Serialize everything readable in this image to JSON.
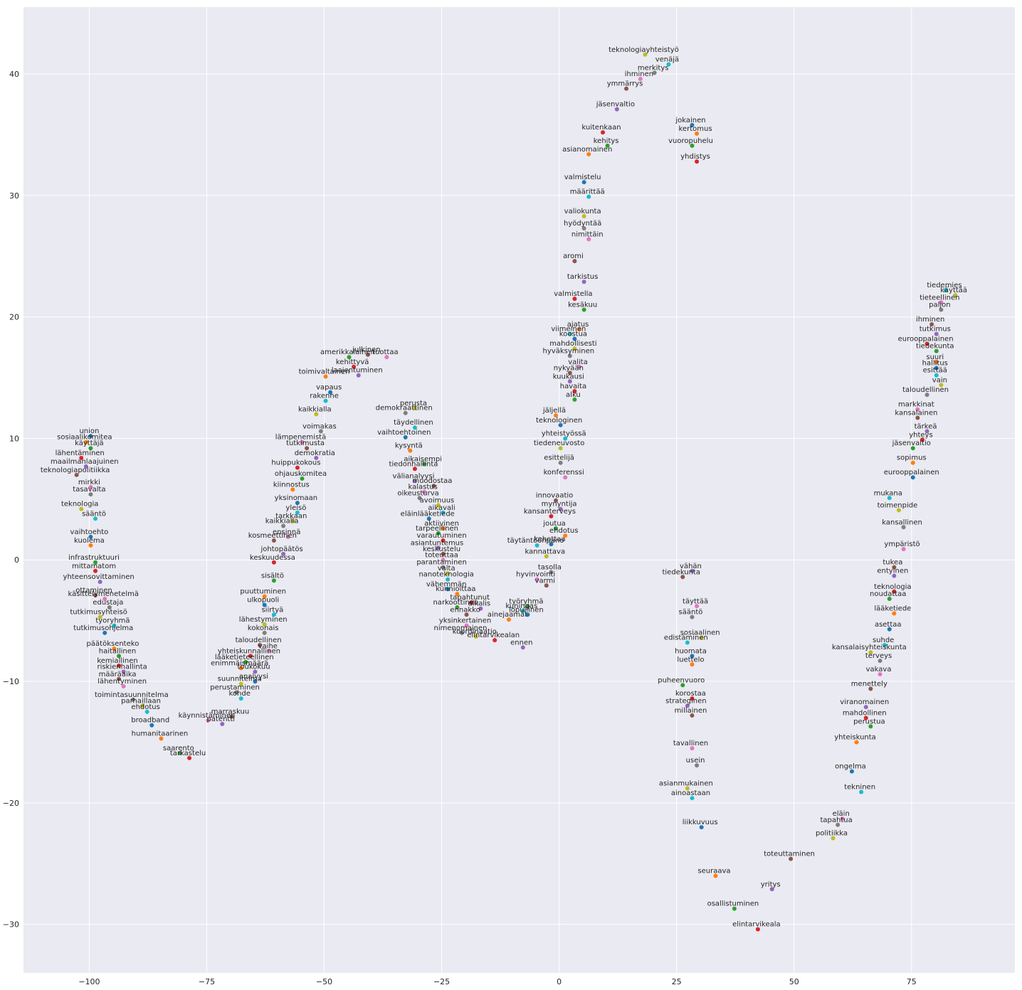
{
  "chart_data": {
    "type": "scatter",
    "title": "",
    "xlabel": "",
    "ylabel": "",
    "xlim": [
      -114,
      97
    ],
    "ylim": [
      -34,
      45.5
    ],
    "xticks": [
      -100,
      -75,
      -50,
      -25,
      0,
      25,
      50,
      75
    ],
    "yticks": [
      -30,
      -20,
      -10,
      0,
      10,
      20,
      30,
      40
    ],
    "grid": true,
    "legend": "none",
    "palette": [
      "#1f77b4",
      "#ff7f0e",
      "#2ca02c",
      "#d62728",
      "#9467bd",
      "#8c564b",
      "#e377c2",
      "#7f7f7f",
      "#bcbd22",
      "#17becf"
    ],
    "points": [
      {
        "label": "union",
        "x": -100,
        "y": 10.6
      },
      {
        "label": "sosiaalikomitea",
        "x": -101,
        "y": 10.1
      },
      {
        "label": "käyttäjä",
        "x": -100,
        "y": 9.6
      },
      {
        "label": "lähentäminen",
        "x": -102,
        "y": 8.8
      },
      {
        "label": "maailmanlaajuinen",
        "x": -101,
        "y": 8.1
      },
      {
        "label": "teknologiapolitiikka",
        "x": -103,
        "y": 7.4
      },
      {
        "label": "mirkki",
        "x": -100,
        "y": 6.4
      },
      {
        "label": "tasavalta",
        "x": -100,
        "y": 5.8
      },
      {
        "label": "teknologia",
        "x": -102,
        "y": 4.6
      },
      {
        "label": "sääntö",
        "x": -99,
        "y": 3.8
      },
      {
        "label": "vaihtoehto",
        "x": -100,
        "y": 2.3
      },
      {
        "label": "kuolema",
        "x": -100,
        "y": 1.6
      },
      {
        "label": "infrastruktuuri",
        "x": -99,
        "y": 0.2
      },
      {
        "label": "mittamatom",
        "x": -99,
        "y": -0.5
      },
      {
        "label": "yhteensovittaminen",
        "x": -98,
        "y": -1.4
      },
      {
        "label": "ottaminen",
        "x": -99,
        "y": -2.5
      },
      {
        "label": "käsittelymenetelmä",
        "x": -97,
        "y": -2.8
      },
      {
        "label": "edustaja",
        "x": -96,
        "y": -3.5
      },
      {
        "label": "tutkimusyhteisö",
        "x": -98,
        "y": -4.3
      },
      {
        "label": "tyoryhmä",
        "x": -95,
        "y": -5.0
      },
      {
        "label": "tutkimusohjelma",
        "x": -97,
        "y": -5.6
      },
      {
        "label": "päätöksenteko",
        "x": -95,
        "y": -6.9
      },
      {
        "label": "haitallinen",
        "x": -94,
        "y": -7.5
      },
      {
        "label": "kemiallinen",
        "x": -94,
        "y": -8.3
      },
      {
        "label": "riskienhallinta",
        "x": -93,
        "y": -8.8
      },
      {
        "label": "määräaika",
        "x": -94,
        "y": -9.4
      },
      {
        "label": "lähentyminen",
        "x": -93,
        "y": -10.0
      },
      {
        "label": "toimintasuunnitelma",
        "x": -91,
        "y": -11.1
      },
      {
        "label": "parhaillaan",
        "x": -89,
        "y": -11.6
      },
      {
        "label": "ehdotus",
        "x": -88,
        "y": -12.1
      },
      {
        "label": "broadband",
        "x": -87,
        "y": -13.2
      },
      {
        "label": "humanitaarinen",
        "x": -85,
        "y": -14.3
      },
      {
        "label": "saarento",
        "x": -81,
        "y": -15.5
      },
      {
        "label": "tarkastelu",
        "x": -79,
        "y": -15.9
      },
      {
        "label": "patentti",
        "x": -72,
        "y": -13.1
      },
      {
        "label": "marraskuu",
        "x": -70,
        "y": -12.5
      },
      {
        "label": "käynnistäminen",
        "x": -75,
        "y": -12.8
      },
      {
        "label": "perustaminen",
        "x": -69,
        "y": -10.5
      },
      {
        "label": "suunnitelma",
        "x": -68,
        "y": -9.8
      },
      {
        "label": "kohde",
        "x": -68,
        "y": -11.0
      },
      {
        "label": "analyysi",
        "x": -65,
        "y": -9.6
      },
      {
        "label": "enimmäismäärä",
        "x": -68,
        "y": -8.5
      },
      {
        "label": "lääketieteellinen",
        "x": -67,
        "y": -8.0
      },
      {
        "label": "yhteiskunnallinen",
        "x": -66,
        "y": -7.5
      },
      {
        "label": "toukokuu",
        "x": -65,
        "y": -8.8
      },
      {
        "label": "taloudellinen",
        "x": -64,
        "y": -6.6
      },
      {
        "label": "vaihe",
        "x": -62,
        "y": -7.1
      },
      {
        "label": "kokonais",
        "x": -63,
        "y": -5.6
      },
      {
        "label": "lähestyminen",
        "x": -63,
        "y": -4.9
      },
      {
        "label": "siirtyä",
        "x": -61,
        "y": -4.1
      },
      {
        "label": "ulkopuoli",
        "x": -63,
        "y": -3.3
      },
      {
        "label": "puuttuminen",
        "x": -63,
        "y": -2.6
      },
      {
        "label": "sisältö",
        "x": -61,
        "y": -1.3
      },
      {
        "label": "keskuudessa",
        "x": -61,
        "y": 0.2
      },
      {
        "label": "johtopäätös",
        "x": -59,
        "y": 0.9
      },
      {
        "label": "kosmeettinen",
        "x": -61,
        "y": 2.0
      },
      {
        "label": "ensinnä",
        "x": -58,
        "y": 2.3
      },
      {
        "label": "kaikkialla",
        "x": -59,
        "y": 3.2
      },
      {
        "label": "tarkkaan",
        "x": -57,
        "y": 3.6
      },
      {
        "label": "yleisö",
        "x": -56,
        "y": 4.3
      },
      {
        "label": "yksinomaan",
        "x": -56,
        "y": 5.1
      },
      {
        "label": "kiinnostus",
        "x": -57,
        "y": 6.2
      },
      {
        "label": "ohjauskomitea",
        "x": -55,
        "y": 7.1
      },
      {
        "label": "huippukokous",
        "x": -56,
        "y": 8.0
      },
      {
        "label": "demokratia",
        "x": -52,
        "y": 8.8
      },
      {
        "label": "tutkimusta",
        "x": -54,
        "y": 9.6
      },
      {
        "label": "lämpenemistä",
        "x": -55,
        "y": 10.1
      },
      {
        "label": "voimakas",
        "x": -51,
        "y": 11.0
      },
      {
        "label": "kaikkialla",
        "x": -52,
        "y": 12.4
      },
      {
        "label": "rakenne",
        "x": -50,
        "y": 13.5
      },
      {
        "label": "vapaus",
        "x": -49,
        "y": 14.2
      },
      {
        "label": "toimivaltainen",
        "x": -50,
        "y": 15.5
      },
      {
        "label": "amerikkalainen",
        "x": -45,
        "y": 17.1
      },
      {
        "label": "kehittyvä",
        "x": -44,
        "y": 16.3
      },
      {
        "label": "laajentuminen",
        "x": -43,
        "y": 15.6
      },
      {
        "label": "julkinen",
        "x": -41,
        "y": 17.3
      },
      {
        "label": "tuottaa",
        "x": -37,
        "y": 17.1
      },
      {
        "label": "demokraattinen",
        "x": -33,
        "y": 12.5
      },
      {
        "label": "perusta",
        "x": -31,
        "y": 12.9
      },
      {
        "label": "täydellinen",
        "x": -31,
        "y": 11.3
      },
      {
        "label": "vaihtoehtoinen",
        "x": -33,
        "y": 10.5
      },
      {
        "label": "kysyntä",
        "x": -32,
        "y": 9.4
      },
      {
        "label": "aikaisempi",
        "x": -29,
        "y": 8.3
      },
      {
        "label": "tiedonhallinta",
        "x": -31,
        "y": 7.9
      },
      {
        "label": "välianalyysi",
        "x": -31,
        "y": 6.9
      },
      {
        "label": "muodostaa",
        "x": -27,
        "y": 6.5
      },
      {
        "label": "kalastus",
        "x": -29,
        "y": 6.0
      },
      {
        "label": "oikeusturva",
        "x": -30,
        "y": 5.5
      },
      {
        "label": "avoimuus",
        "x": -26,
        "y": 4.9
      },
      {
        "label": "aikavali",
        "x": -25,
        "y": 4.3
      },
      {
        "label": "eläinlääketiede",
        "x": -28,
        "y": 3.8
      },
      {
        "label": "aktiivinen",
        "x": -25,
        "y": 3.0
      },
      {
        "label": "tarpeellinen",
        "x": -26,
        "y": 2.6
      },
      {
        "label": "varautuminen",
        "x": -25,
        "y": 2.0
      },
      {
        "label": "asiantuntemus",
        "x": -26,
        "y": 1.4
      },
      {
        "label": "keskustelu",
        "x": -25,
        "y": 0.9
      },
      {
        "label": "toteuttaa",
        "x": -25,
        "y": 0.4
      },
      {
        "label": "parantaminen",
        "x": -25,
        "y": -0.2
      },
      {
        "label": "valta",
        "x": -24,
        "y": -0.7
      },
      {
        "label": "nanoteknologia",
        "x": -24,
        "y": -1.2
      },
      {
        "label": "vähemmän",
        "x": -24,
        "y": -2.0
      },
      {
        "label": "kunnioittaa",
        "x": -22,
        "y": -2.4
      },
      {
        "label": "narkoottinen",
        "x": -22,
        "y": -3.5
      },
      {
        "label": "tapahtunut",
        "x": -19,
        "y": -3.1
      },
      {
        "label": "alkalis",
        "x": -17,
        "y": -3.6
      },
      {
        "label": "ennakko",
        "x": -20,
        "y": -4.1
      },
      {
        "label": "yksinkertainen",
        "x": -20,
        "y": -5.0
      },
      {
        "label": "nimenomainen",
        "x": -21,
        "y": -5.6
      },
      {
        "label": "koordinaatio",
        "x": -18,
        "y": -5.9
      },
      {
        "label": "kuningas",
        "x": -8,
        "y": -3.8
      },
      {
        "label": "lopullinen",
        "x": -7,
        "y": -4.1
      },
      {
        "label": "ainejaamat",
        "x": -11,
        "y": -4.5
      },
      {
        "label": "työryhmä",
        "x": -7,
        "y": -3.4
      },
      {
        "label": "elintarvikealan",
        "x": -14,
        "y": -6.2
      },
      {
        "label": "ennen",
        "x": -8,
        "y": -6.8
      },
      {
        "label": "varmi",
        "x": -3,
        "y": -1.7
      },
      {
        "label": "hyvinvointi",
        "x": -5,
        "y": -1.2
      },
      {
        "label": "tasolla",
        "x": -2,
        "y": -0.6
      },
      {
        "label": "kannattava",
        "x": -3,
        "y": 0.7
      },
      {
        "label": "täytäntöönpano",
        "x": -5,
        "y": 1.6
      },
      {
        "label": "kehottaa",
        "x": -2,
        "y": 1.7
      },
      {
        "label": "ehdotus",
        "x": 1,
        "y": 2.4
      },
      {
        "label": "joutua",
        "x": -1,
        "y": 3.0
      },
      {
        "label": "kansanterveys",
        "x": -2,
        "y": 4.0
      },
      {
        "label": "mynyntija",
        "x": 0,
        "y": 4.6
      },
      {
        "label": "innovaatio",
        "x": -1,
        "y": 5.3
      },
      {
        "label": "konferenssi",
        "x": 1,
        "y": 7.2
      },
      {
        "label": "esittelijä",
        "x": 0,
        "y": 8.4
      },
      {
        "label": "tiedeneuvosto",
        "x": 0,
        "y": 9.6
      },
      {
        "label": "yhteistyössä",
        "x": 1,
        "y": 10.4
      },
      {
        "label": "teknologinen",
        "x": 0,
        "y": 11.5
      },
      {
        "label": "jäljellä",
        "x": -1,
        "y": 12.3
      },
      {
        "label": "alku",
        "x": 3,
        "y": 13.6
      },
      {
        "label": "havaita",
        "x": 3,
        "y": 14.3
      },
      {
        "label": "kuukausi",
        "x": 2,
        "y": 15.1
      },
      {
        "label": "nykyään",
        "x": 2,
        "y": 15.8
      },
      {
        "label": "valita",
        "x": 4,
        "y": 16.3
      },
      {
        "label": "hyväksyminen",
        "x": 2,
        "y": 17.2
      },
      {
        "label": "mahdollisesti",
        "x": 3,
        "y": 17.8
      },
      {
        "label": "viimeinen",
        "x": 2,
        "y": 19.0
      },
      {
        "label": "koostua",
        "x": 3,
        "y": 18.6
      },
      {
        "label": "ajatus",
        "x": 4,
        "y": 19.4
      },
      {
        "label": "kesäkuu",
        "x": 5,
        "y": 21.0
      },
      {
        "label": "valmistella",
        "x": 3,
        "y": 21.9
      },
      {
        "label": "tarkistus",
        "x": 5,
        "y": 23.3
      },
      {
        "label": "aromi",
        "x": 3,
        "y": 25.0
      },
      {
        "label": "nimittäin",
        "x": 6,
        "y": 26.8
      },
      {
        "label": "hyödyntää",
        "x": 5,
        "y": 27.7
      },
      {
        "label": "valiokunta",
        "x": 5,
        "y": 28.7
      },
      {
        "label": "määrittää",
        "x": 6,
        "y": 30.3
      },
      {
        "label": "valmistelu",
        "x": 5,
        "y": 31.5
      },
      {
        "label": "asianomainen",
        "x": 6,
        "y": 33.8
      },
      {
        "label": "kehitys",
        "x": 10,
        "y": 34.5
      },
      {
        "label": "kuitenkaan",
        "x": 9,
        "y": 35.6
      },
      {
        "label": "jäsenvaltio",
        "x": 12,
        "y": 37.5
      },
      {
        "label": "ymmärrys",
        "x": 14,
        "y": 39.2
      },
      {
        "label": "ihminen",
        "x": 17,
        "y": 40.0
      },
      {
        "label": "merkitys",
        "x": 20,
        "y": 40.5
      },
      {
        "label": "teknologiayhteistyö",
        "x": 18,
        "y": 42.0
      },
      {
        "label": "venäjä",
        "x": 23,
        "y": 41.2
      },
      {
        "label": "jokainen",
        "x": 28,
        "y": 36.2
      },
      {
        "label": "kertomus",
        "x": 29,
        "y": 35.5
      },
      {
        "label": "vuoropuhelu",
        "x": 28,
        "y": 34.5
      },
      {
        "label": "yhdistys",
        "x": 29,
        "y": 33.2
      },
      {
        "label": "vähän",
        "x": 28,
        "y": -0.5
      },
      {
        "label": "tiedekunta",
        "x": 26,
        "y": -1.0
      },
      {
        "label": "täyttää",
        "x": 29,
        "y": -3.4
      },
      {
        "label": "sääntö",
        "x": 28,
        "y": -4.3
      },
      {
        "label": "sosiaalinen",
        "x": 30,
        "y": -6.0
      },
      {
        "label": "edistäminen",
        "x": 27,
        "y": -6.4
      },
      {
        "label": "huomata",
        "x": 28,
        "y": -7.5
      },
      {
        "label": "luettelo",
        "x": 28,
        "y": -8.2
      },
      {
        "label": "puheenvuoro",
        "x": 26,
        "y": -9.9
      },
      {
        "label": "korostaa",
        "x": 28,
        "y": -11.0
      },
      {
        "label": "strateginen",
        "x": 27,
        "y": -11.6
      },
      {
        "label": "millainen",
        "x": 28,
        "y": -12.4
      },
      {
        "label": "tavallinen",
        "x": 28,
        "y": -15.1
      },
      {
        "label": "usein",
        "x": 29,
        "y": -16.5
      },
      {
        "label": "asianmukainen",
        "x": 27,
        "y": -18.4
      },
      {
        "label": "ainoastaan",
        "x": 28,
        "y": -19.2
      },
      {
        "label": "liikkuvuus",
        "x": 30,
        "y": -21.6
      },
      {
        "label": "seuraava",
        "x": 33,
        "y": -25.6
      },
      {
        "label": "osallistuminen",
        "x": 37,
        "y": -28.3
      },
      {
        "label": "elintarvikeala",
        "x": 42,
        "y": -30.0
      },
      {
        "label": "yritys",
        "x": 45,
        "y": -26.7
      },
      {
        "label": "toteuttaminen",
        "x": 49,
        "y": -24.2
      },
      {
        "label": "eläin",
        "x": 60,
        "y": -20.9
      },
      {
        "label": "tapahtua",
        "x": 59,
        "y": -21.4
      },
      {
        "label": "politiikka",
        "x": 58,
        "y": -22.5
      },
      {
        "label": "tekninen",
        "x": 64,
        "y": -18.7
      },
      {
        "label": "ongelma",
        "x": 62,
        "y": -17.0
      },
      {
        "label": "yhteiskunta",
        "x": 63,
        "y": -14.6
      },
      {
        "label": "perustua",
        "x": 66,
        "y": -13.3
      },
      {
        "label": "mahdollinen",
        "x": 65,
        "y": -12.6
      },
      {
        "label": "viranomainen",
        "x": 65,
        "y": -11.7
      },
      {
        "label": "menettely",
        "x": 66,
        "y": -10.2
      },
      {
        "label": "vakava",
        "x": 68,
        "y": -9.0
      },
      {
        "label": "terveys",
        "x": 68,
        "y": -7.9
      },
      {
        "label": "kansalaisyhteiskunta",
        "x": 66,
        "y": -7.2
      },
      {
        "label": "suhde",
        "x": 69,
        "y": -6.6
      },
      {
        "label": "asettaa",
        "x": 70,
        "y": -5.3
      },
      {
        "label": "lääketiede",
        "x": 71,
        "y": -4.0
      },
      {
        "label": "noudattaa",
        "x": 70,
        "y": -2.8
      },
      {
        "label": "teknologia",
        "x": 71,
        "y": -2.2
      },
      {
        "label": "entyinen",
        "x": 71,
        "y": -0.9
      },
      {
        "label": "tukea",
        "x": 71,
        "y": -0.2
      },
      {
        "label": "ympäristö",
        "x": 73,
        "y": 1.3
      },
      {
        "label": "kansallinen",
        "x": 73,
        "y": 3.1
      },
      {
        "label": "toimenpide",
        "x": 72,
        "y": 4.5
      },
      {
        "label": "mukana",
        "x": 70,
        "y": 5.5
      },
      {
        "label": "eurooppalainen",
        "x": 75,
        "y": 7.2
      },
      {
        "label": "sopimus",
        "x": 75,
        "y": 8.4
      },
      {
        "label": "jäsenvaltio",
        "x": 75,
        "y": 9.6
      },
      {
        "label": "yhteys",
        "x": 77,
        "y": 10.3
      },
      {
        "label": "tärkeä",
        "x": 78,
        "y": 11.0
      },
      {
        "label": "kansalainen",
        "x": 76,
        "y": 12.1
      },
      {
        "label": "markkinat",
        "x": 76,
        "y": 12.8
      },
      {
        "label": "taloudellinen",
        "x": 78,
        "y": 14.0
      },
      {
        "label": "vain",
        "x": 81,
        "y": 14.8
      },
      {
        "label": "esittää",
        "x": 80,
        "y": 15.6
      },
      {
        "label": "hallitus",
        "x": 80,
        "y": 16.2
      },
      {
        "label": "suuri",
        "x": 80,
        "y": 16.7
      },
      {
        "label": "tiedekunta",
        "x": 80,
        "y": 17.6
      },
      {
        "label": "eurooppalainen",
        "x": 78,
        "y": 18.2
      },
      {
        "label": "tutkimus",
        "x": 80,
        "y": 19.0
      },
      {
        "label": "ihminen",
        "x": 79,
        "y": 19.8
      },
      {
        "label": "tieteellinen",
        "x": 81,
        "y": 21.6
      },
      {
        "label": "paljon",
        "x": 81,
        "y": 21.0
      },
      {
        "label": "käyttää",
        "x": 84,
        "y": 22.2
      },
      {
        "label": "tiedemies",
        "x": 82,
        "y": 22.6
      }
    ]
  }
}
